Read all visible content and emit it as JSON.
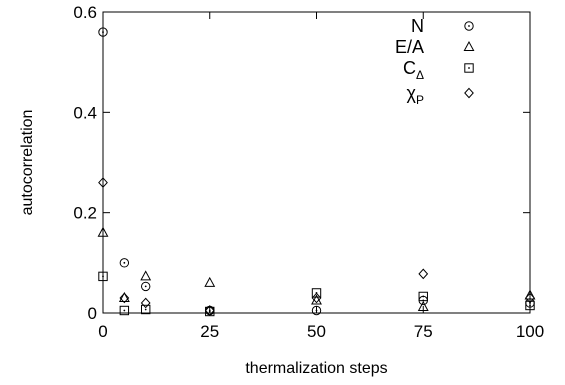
{
  "chart_data": {
    "type": "scatter",
    "xlabel": "thermalization steps",
    "ylabel": "autocorrelation",
    "xlim": [
      0,
      100
    ],
    "ylim": [
      0,
      0.6
    ],
    "xticks": [
      "0",
      "25",
      "50",
      "75",
      "100"
    ],
    "yticks": [
      "0",
      "0.2",
      "0.4",
      "0.6"
    ],
    "grid": false,
    "legend_position": "top-right",
    "series": [
      {
        "name": "N",
        "legend": {
          "main": "N",
          "sub": ""
        },
        "marker": "circle-dot",
        "x": [
          0,
          5,
          10,
          25,
          50,
          75,
          100
        ],
        "y": [
          0.56,
          0.1,
          0.053,
          0.005,
          0.005,
          0.025,
          0.02
        ]
      },
      {
        "name": "E/A",
        "legend": {
          "main": "E/A",
          "sub": ""
        },
        "marker": "triangle",
        "x": [
          0,
          5,
          10,
          25,
          50,
          75,
          100
        ],
        "y": [
          0.16,
          0.03,
          0.073,
          0.06,
          0.025,
          0.012,
          0.035
        ]
      },
      {
        "name": "C_Δ",
        "legend": {
          "main": "C",
          "sub": "Δ"
        },
        "marker": "square-dot",
        "x": [
          0,
          5,
          10,
          25,
          50,
          75,
          100
        ],
        "y": [
          0.073,
          0.005,
          0.007,
          0.003,
          0.04,
          0.033,
          0.015
        ]
      },
      {
        "name": "χ_P",
        "legend": {
          "main": "χ",
          "sub": "P"
        },
        "marker": "diamond",
        "x": [
          0,
          5,
          10,
          25,
          50,
          75,
          100
        ],
        "y": [
          0.26,
          0.03,
          0.02,
          0.005,
          0.03,
          0.078,
          0.03
        ]
      }
    ]
  }
}
